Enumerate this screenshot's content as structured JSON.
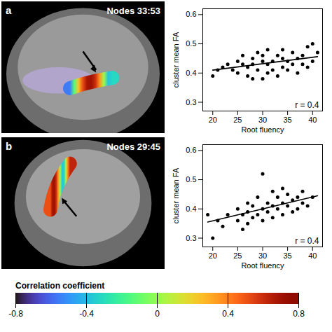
{
  "images": [
    {
      "label": "a",
      "title": "Nodes 33:53"
    },
    {
      "label": "b",
      "title": "Nodes 29:45"
    }
  ],
  "chart_data": [
    {
      "type": "scatter",
      "x_label": "Root fluency",
      "y_label": "cluster mean FA",
      "annotation": "r = 0.4",
      "xlim": [
        18,
        42
      ],
      "ylim": [
        0.27,
        0.62
      ],
      "xticks": [
        20,
        25,
        30,
        35,
        40
      ],
      "yticks": [
        0.3,
        0.4,
        0.5,
        0.6
      ],
      "series": [
        {
          "type": "scatter",
          "marker": "circle",
          "color": "#000000",
          "x": [
            20,
            21,
            22,
            23,
            24,
            25,
            25,
            26,
            26,
            27,
            27,
            28,
            28,
            28,
            29,
            29,
            30,
            30,
            30,
            31,
            31,
            31,
            32,
            32,
            33,
            33,
            34,
            34,
            34,
            35,
            35,
            36,
            36,
            37,
            37,
            38,
            38,
            39,
            39,
            40,
            40,
            41
          ],
          "values": [
            0.39,
            0.41,
            0.42,
            0.43,
            0.41,
            0.4,
            0.44,
            0.43,
            0.46,
            0.39,
            0.42,
            0.38,
            0.43,
            0.45,
            0.41,
            0.47,
            0.38,
            0.44,
            0.46,
            0.4,
            0.43,
            0.48,
            0.41,
            0.44,
            0.39,
            0.46,
            0.42,
            0.45,
            0.48,
            0.41,
            0.44,
            0.43,
            0.47,
            0.4,
            0.45,
            0.43,
            0.46,
            0.42,
            0.49,
            0.44,
            0.5,
            0.47
          ]
        },
        {
          "type": "line",
          "line_style": "solid",
          "color": "#000000",
          "x": [
            20,
            41
          ],
          "values": [
            0.41,
            0.456
          ]
        }
      ]
    },
    {
      "type": "scatter",
      "x_label": "Root fluency",
      "y_label": "cluster mean FA",
      "annotation": "r = 0.4",
      "xlim": [
        18,
        42
      ],
      "ylim": [
        0.27,
        0.62
      ],
      "xticks": [
        20,
        25,
        30,
        35,
        40
      ],
      "yticks": [
        0.3,
        0.4,
        0.5,
        0.6
      ],
      "series": [
        {
          "type": "scatter",
          "marker": "circle",
          "color": "#000000",
          "x": [
            19,
            20,
            21,
            22,
            23,
            25,
            25,
            26,
            26,
            27,
            27,
            27,
            28,
            28,
            29,
            29,
            30,
            30,
            30,
            31,
            31,
            32,
            32,
            32,
            33,
            33,
            34,
            34,
            34,
            35,
            35,
            36,
            36,
            37,
            37,
            38,
            38,
            39,
            40
          ],
          "values": [
            0.38,
            0.3,
            0.36,
            0.34,
            0.38,
            0.36,
            0.4,
            0.33,
            0.38,
            0.35,
            0.39,
            0.42,
            0.37,
            0.41,
            0.38,
            0.44,
            0.4,
            0.52,
            0.36,
            0.39,
            0.42,
            0.37,
            0.41,
            0.46,
            0.4,
            0.44,
            0.38,
            0.42,
            0.47,
            0.41,
            0.45,
            0.39,
            0.43,
            0.4,
            0.44,
            0.42,
            0.46,
            0.41,
            0.44
          ]
        },
        {
          "type": "line",
          "line_style": "solid",
          "color": "#000000",
          "x": [
            19,
            41
          ],
          "values": [
            0.355,
            0.445
          ]
        }
      ]
    }
  ],
  "colorbar": {
    "label": "Correlation coefficient",
    "range": [
      -0.8,
      0.8
    ],
    "ticks": [
      -0.8,
      -0.4,
      0,
      0.4,
      0.8
    ]
  }
}
